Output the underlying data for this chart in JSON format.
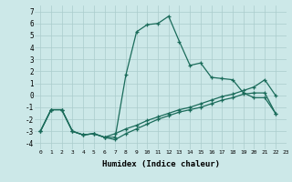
{
  "xlabel": "Humidex (Indice chaleur)",
  "bg_color": "#cce8e8",
  "grid_color": "#aacccc",
  "line_color": "#1a6b5a",
  "xlim": [
    -0.5,
    23
  ],
  "ylim": [
    -4.5,
    7.5
  ],
  "xticks": [
    0,
    1,
    2,
    3,
    4,
    5,
    6,
    7,
    8,
    9,
    10,
    11,
    12,
    13,
    14,
    15,
    16,
    17,
    18,
    19,
    20,
    21,
    22,
    23
  ],
  "yticks": [
    -4,
    -3,
    -2,
    -1,
    0,
    1,
    2,
    3,
    4,
    5,
    6,
    7
  ],
  "line1_x": [
    0,
    1,
    2,
    3,
    4,
    5,
    6,
    7,
    8,
    9,
    10,
    11,
    12,
    13,
    14,
    15,
    16,
    17,
    18,
    19,
    20,
    21,
    22
  ],
  "line1_y": [
    -3,
    -1.2,
    -1.2,
    -3,
    -3.3,
    -3.2,
    -3.5,
    -3.5,
    1.7,
    5.3,
    5.9,
    6.0,
    6.6,
    4.5,
    2.5,
    2.7,
    1.5,
    1.4,
    1.3,
    0.2,
    -0.2,
    -0.2,
    -1.5
  ],
  "line2_x": [
    0,
    1,
    2,
    3,
    4,
    5,
    6,
    7,
    8,
    9,
    10,
    11,
    12,
    13,
    14,
    15,
    16,
    17,
    18,
    19,
    20,
    21,
    22
  ],
  "line2_y": [
    -3,
    -1.2,
    -1.2,
    -3,
    -3.3,
    -3.2,
    -3.5,
    -3.7,
    -3.2,
    -2.8,
    -2.4,
    -2.0,
    -1.7,
    -1.4,
    -1.2,
    -1.0,
    -0.7,
    -0.4,
    -0.2,
    0.1,
    0.2,
    0.2,
    -1.5
  ],
  "line3_x": [
    0,
    1,
    2,
    3,
    4,
    5,
    6,
    7,
    8,
    9,
    10,
    11,
    12,
    13,
    14,
    15,
    16,
    17,
    18,
    19,
    20,
    21,
    22
  ],
  "line3_y": [
    -3,
    -1.2,
    -1.2,
    -3,
    -3.3,
    -3.2,
    -3.5,
    -3.2,
    -2.8,
    -2.5,
    -2.1,
    -1.8,
    -1.5,
    -1.2,
    -1.0,
    -0.7,
    -0.4,
    -0.1,
    0.1,
    0.4,
    0.7,
    1.3,
    0.0
  ]
}
